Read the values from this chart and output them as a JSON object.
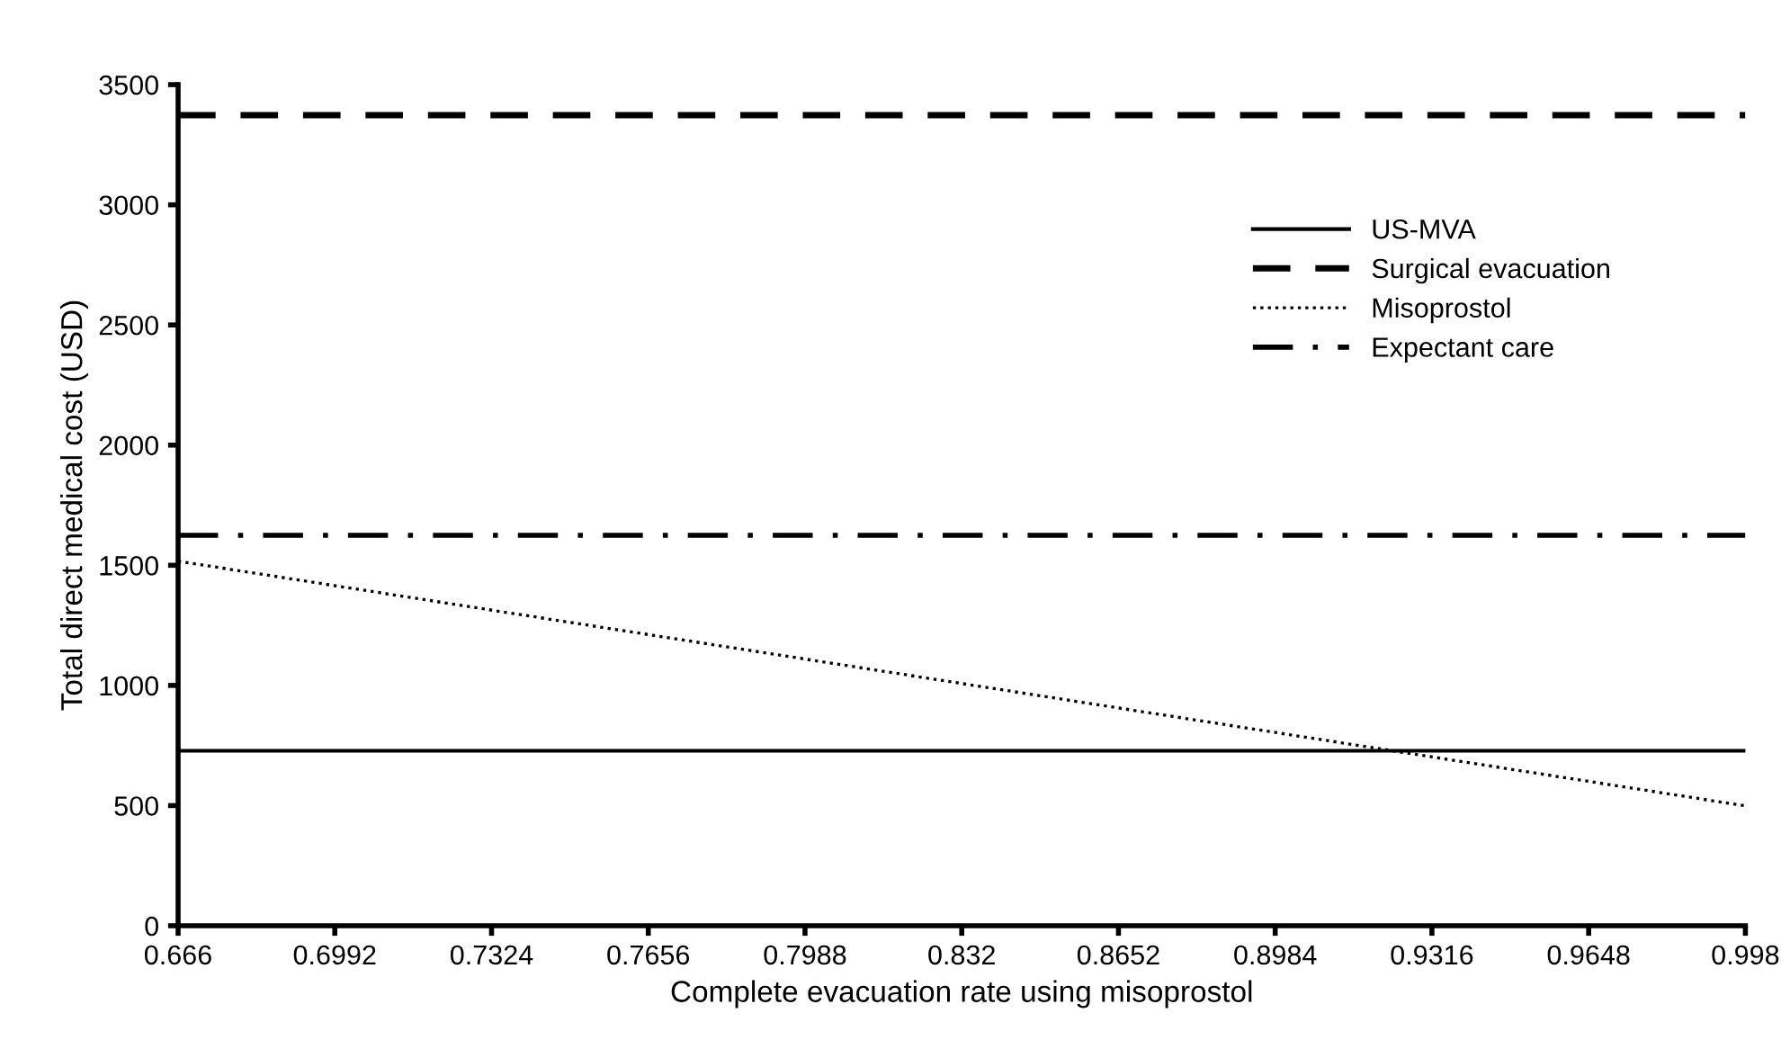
{
  "chart_data": {
    "type": "line",
    "xlabel": "Complete evacuation rate using misoprostol",
    "ylabel": "Total direct medical cost (USD)",
    "x": [
      0.666,
      0.998
    ],
    "series": [
      {
        "name": "US-MVA",
        "color": "#000000",
        "line_style": "solid",
        "values": [
          728,
          728
        ]
      },
      {
        "name": "Surgical evacuation",
        "color": "#000000",
        "line_style": "dashed",
        "values": [
          3373,
          3373
        ]
      },
      {
        "name": "Misoprostol",
        "color": "#000000",
        "line_style": "dotted",
        "values": [
          1517,
          499
        ]
      },
      {
        "name": "Expectant care",
        "color": "#000000",
        "line_style": "dashdot",
        "values": [
          1625,
          1625
        ]
      }
    ],
    "xlim": [
      0.666,
      0.998
    ],
    "xticks": [
      0.666,
      0.6992,
      0.7324,
      0.7656,
      0.7988,
      0.832,
      0.8652,
      0.8984,
      0.9316,
      0.9648,
      0.998
    ],
    "ylim": [
      0,
      3500
    ],
    "yticks": [
      0,
      500,
      1000,
      1500,
      2000,
      2500,
      3000,
      3500
    ],
    "grid": false,
    "legend": "top right",
    "marker": "none"
  }
}
